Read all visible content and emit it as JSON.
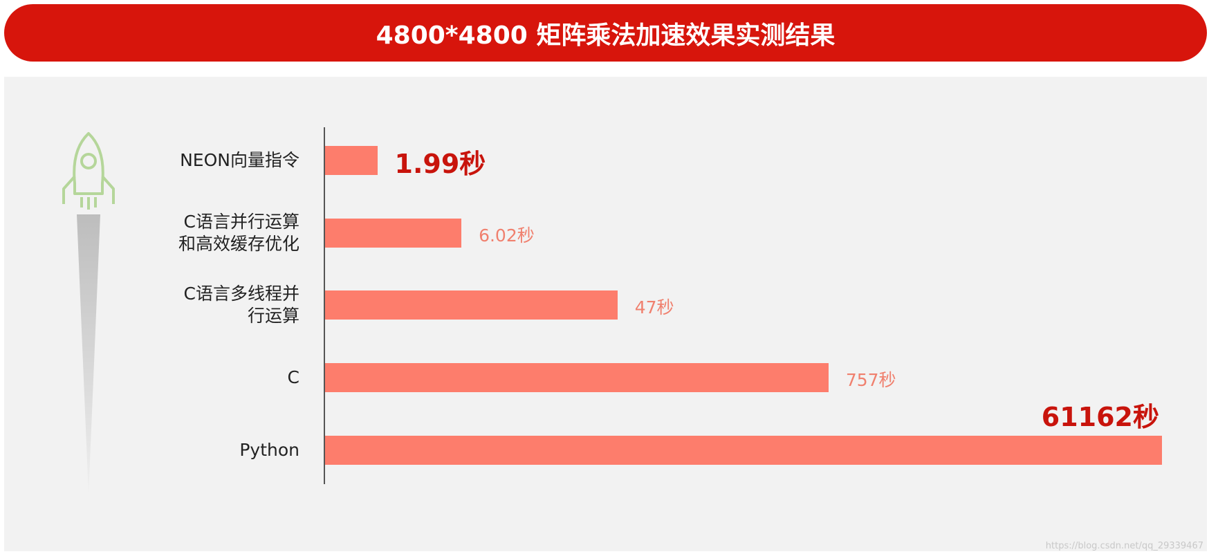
{
  "chart_data": {
    "type": "hbar",
    "title": "4800*4800 矩阵乘法加速效果实测结果",
    "categories": [
      "NEON向量指令",
      "C语言并行运算\n和高效缓存优化",
      "C语言多线程并\n行运算",
      "C",
      "Python"
    ],
    "values": [
      1.99,
      6.02,
      47,
      757,
      61162
    ],
    "value_labels": [
      "1.99秒",
      "6.02秒",
      "47秒",
      "757秒",
      "61162秒"
    ],
    "color": "#fd7d6c",
    "label_color": "#f0806e",
    "highlight": [
      0,
      4
    ],
    "highlight_color": "#c8140c",
    "xscale": "log",
    "xlim": [
      1,
      61162
    ],
    "watermark": "https://blog.csdn.net/qq_29339467"
  }
}
